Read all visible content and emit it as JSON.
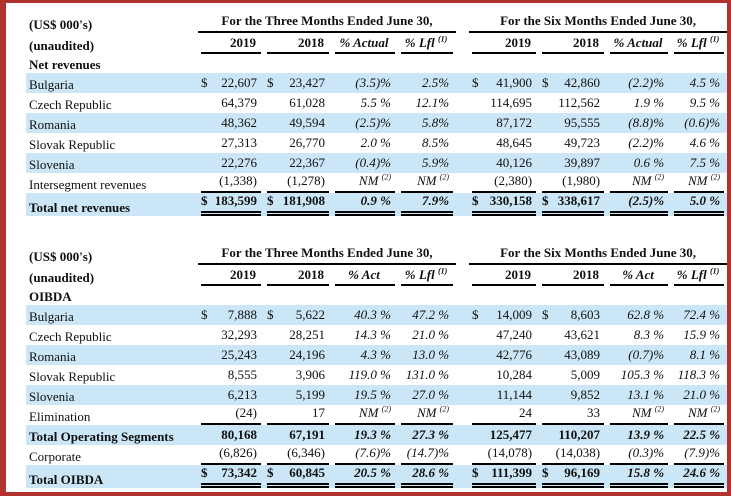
{
  "page": {
    "border_color": "#b23230",
    "stripe_color": "#cbe6f6",
    "not_meaningful_note": "",
    "nm_label": "NM"
  },
  "table1": {
    "corner": {
      "line1": "(US$ 000's)",
      "line2": "(unaudited)"
    },
    "groups": [
      "For the Three Months Ended June 30,",
      "For the Six Months Ended June 30,"
    ],
    "subcols": [
      {
        "label": "2019"
      },
      {
        "label": "2018"
      },
      {
        "label": "% Actual"
      },
      {
        "label": "% Lfl",
        "sup": "(1)"
      },
      {
        "label": "2019"
      },
      {
        "label": "2018"
      },
      {
        "label": "% Actual"
      },
      {
        "label": "% Lfl",
        "sup": "(1)"
      }
    ],
    "rows": [
      {
        "section": "Net revenues",
        "name": "section-row"
      },
      {
        "label": "Bulgaria",
        "cells": [
          "$ 22,607",
          "$ 23,427",
          "(3.5)%",
          "2.5%",
          "$ 41,900",
          "$ 42,860",
          "(2.2)%",
          "4.5 %"
        ],
        "stripe": true
      },
      {
        "label": "Czech Republic",
        "cells": [
          "64,379",
          "61,028",
          "5.5 %",
          "12.1%",
          "114,695",
          "112,562",
          "1.9 %",
          "9.5 %"
        ]
      },
      {
        "label": "Romania",
        "cells": [
          "48,362",
          "49,594",
          "(2.5)%",
          "5.8%",
          "87,172",
          "95,555",
          "(8.8)%",
          "(0.6)%"
        ],
        "stripe": true
      },
      {
        "label": "Slovak Republic",
        "cells": [
          "27,313",
          "26,770",
          "2.0 %",
          "8.5%",
          "48,645",
          "49,723",
          "(2.2)%",
          "4.6 %"
        ]
      },
      {
        "label": "Slovenia",
        "cells": [
          "22,276",
          "22,367",
          "(0.4)%",
          "5.9%",
          "40,126",
          "39,897",
          "0.6 %",
          "7.5 %"
        ],
        "stripe": true
      },
      {
        "label": "Intersegment revenues",
        "cells": [
          "(1,338)",
          "(1,278)",
          "NM (2)",
          "NM (2)",
          "(2,380)",
          "(1,980)",
          "NM (2)",
          "NM (2)"
        ],
        "rule": "single"
      },
      {
        "label": "Total net revenues",
        "cells": [
          "$183,599",
          "$181,908",
          "0.9 %",
          "7.9%",
          "$330,158",
          "$338,617",
          "(2.5)%",
          "5.0 %"
        ],
        "stripe": true,
        "bold": true,
        "rule": "double",
        "name": "total-row"
      }
    ]
  },
  "table2": {
    "corner": {
      "line1": "(US$ 000's)",
      "line2": "(unaudited)"
    },
    "groups": [
      "For the Three Months Ended June 30,",
      "For the Six Months Ended June 30,"
    ],
    "subcols": [
      {
        "label": "2019"
      },
      {
        "label": "2018"
      },
      {
        "label": "% Act"
      },
      {
        "label": "% Lfl",
        "sup": "(1)"
      },
      {
        "label": "2019"
      },
      {
        "label": "2018"
      },
      {
        "label": "% Act"
      },
      {
        "label": "% Lfl",
        "sup": "(1)"
      }
    ],
    "rows": [
      {
        "section": "OIBDA",
        "name": "section-row"
      },
      {
        "label": "Bulgaria",
        "cells": [
          "$ 7,888",
          "$ 5,622",
          "40.3 %",
          "47.2 %",
          "$ 14,009",
          "$ 8,603",
          "62.8 %",
          "72.4 %"
        ],
        "stripe": true
      },
      {
        "label": "Czech Republic",
        "cells": [
          "32,293",
          "28,251",
          "14.3 %",
          "21.0 %",
          "47,240",
          "43,621",
          "8.3 %",
          "15.9 %"
        ]
      },
      {
        "label": "Romania",
        "cells": [
          "25,243",
          "24,196",
          "4.3 %",
          "13.0 %",
          "42,776",
          "43,089",
          "(0.7)%",
          "8.1 %"
        ],
        "stripe": true
      },
      {
        "label": "Slovak Republic",
        "cells": [
          "8,555",
          "3,906",
          "119.0 %",
          "131.0 %",
          "10,284",
          "5,009",
          "105.3 %",
          "118.3 %"
        ]
      },
      {
        "label": "Slovenia",
        "cells": [
          "6,213",
          "5,199",
          "19.5 %",
          "27.0 %",
          "11,144",
          "9,852",
          "13.1 %",
          "21.0 %"
        ],
        "stripe": true
      },
      {
        "label": "Elimination",
        "cells": [
          "(24)",
          "17",
          "NM (2)",
          "NM (2)",
          "24",
          "33",
          "NM (2)",
          "NM (2)"
        ],
        "rule": "single"
      },
      {
        "label": "Total Operating Segments",
        "cells": [
          "80,168",
          "67,191",
          "19.3 %",
          "27.3 %",
          "125,477",
          "110,207",
          "13.9 %",
          "22.5 %"
        ],
        "stripe": true,
        "bold": true,
        "name": "total-row"
      },
      {
        "label": "Corporate",
        "cells": [
          "(6,826)",
          "(6,346)",
          "(7.6)%",
          "(14.7)%",
          "(14,078)",
          "(14,038)",
          "(0.3)%",
          "(7.9)%"
        ],
        "rule": "single"
      },
      {
        "label": "Total OIBDA",
        "cells": [
          "$ 73,342",
          "$ 60,845",
          "20.5 %",
          "28.6 %",
          "$111,399",
          "$ 96,169",
          "15.8 %",
          "24.6 %"
        ],
        "stripe": true,
        "bold": true,
        "rule": "double",
        "name": "total-row"
      }
    ]
  }
}
